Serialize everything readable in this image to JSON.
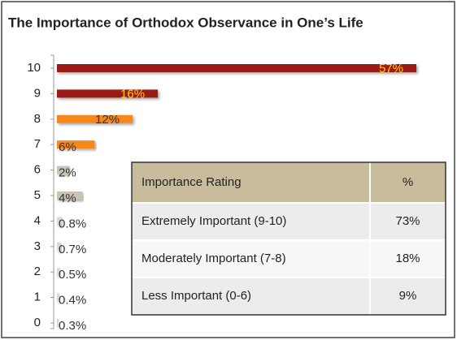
{
  "chart_data": {
    "type": "bar",
    "orientation": "horizontal",
    "title": "The Importance of Orthodox Observance in One’s Life",
    "categories": [
      "10",
      "9",
      "8",
      "7",
      "6",
      "5",
      "4",
      "3",
      "2",
      "1",
      "0"
    ],
    "values": [
      57,
      16,
      12,
      6,
      2,
      4,
      0.8,
      0.7,
      0.5,
      0.4,
      0.3
    ],
    "value_labels": [
      "57%",
      "16%",
      "12%",
      "6%",
      "2%",
      "4%",
      "0.8%",
      "0.7%",
      "0.5%",
      "0.4%",
      "0.3%"
    ],
    "colors": [
      "#9b1c14",
      "#9b1c14",
      "#f7861e",
      "#f7861e",
      "#c8c3b4",
      "#c8c3b4",
      "#d9d9d9",
      "#d9d9d9",
      "#d9d9d9",
      "#d9d9d9",
      "#d9d9d9"
    ],
    "label_colors": [
      "#ffd200",
      "#ffd200",
      "#333333",
      "#333333",
      "#333333",
      "#333333",
      "#333333",
      "#333333",
      "#333333",
      "#333333",
      "#333333"
    ]
  },
  "table": {
    "header": [
      "Importance Rating",
      "%"
    ],
    "rows": [
      [
        "Extremely Important (9-10)",
        "73%"
      ],
      [
        "Moderately Important (7-8)",
        "18%"
      ],
      [
        "Less Important (0-6)",
        "9%"
      ]
    ]
  }
}
